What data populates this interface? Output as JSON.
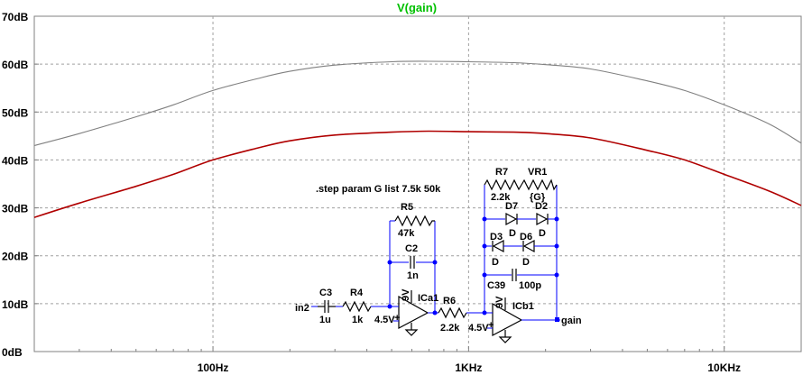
{
  "chart_data": {
    "type": "line",
    "title": "V(gain)",
    "x_scale": "log",
    "xlim": [
      20,
      20000
    ],
    "ylim": [
      0,
      70
    ],
    "x_ticks": [
      100,
      1000,
      10000
    ],
    "x_tick_labels": [
      "100Hz",
      "1KHz",
      "10KHz"
    ],
    "y_ticks": [
      0,
      10,
      20,
      30,
      40,
      50,
      60,
      70
    ],
    "y_tick_labels": [
      "0dB",
      "10dB",
      "20dB",
      "30dB",
      "40dB",
      "50dB",
      "60dB",
      "70dB"
    ],
    "grid": true,
    "series": [
      {
        "color": "#808080",
        "x": [
          20,
          30,
          50,
          70,
          100,
          150,
          200,
          300,
          500,
          700,
          1000,
          1500,
          2000,
          3000,
          5000,
          7000,
          10000,
          15000,
          20000
        ],
        "y": [
          43,
          45.5,
          49,
          51.5,
          54.5,
          57,
          58.5,
          59.8,
          60.5,
          60.6,
          60.5,
          60.3,
          59.9,
          59,
          56.5,
          54.5,
          51.5,
          47.5,
          43.5
        ]
      },
      {
        "color": "#b00000",
        "x": [
          20,
          30,
          50,
          70,
          100,
          150,
          200,
          300,
          500,
          700,
          1000,
          1500,
          2000,
          3000,
          5000,
          7000,
          10000,
          15000,
          20000
        ],
        "y": [
          28,
          31,
          34.5,
          37,
          40,
          42.5,
          44,
          45.2,
          45.8,
          46,
          45.9,
          45.8,
          45.5,
          44.6,
          42,
          40,
          37,
          33.5,
          30.5
        ]
      }
    ]
  },
  "schematic": {
    "directive": ".step param G list 7.5k 50k",
    "components": {
      "c3": {
        "name": "C3",
        "value": "1u"
      },
      "r4": {
        "name": "R4",
        "value": "1k"
      },
      "r5": {
        "name": "R5",
        "value": "47k"
      },
      "c2": {
        "name": "C2",
        "value": "1n"
      },
      "r6": {
        "name": "R6",
        "value": "2.2k"
      },
      "r7": {
        "name": "R7",
        "value": "2.2k"
      },
      "vr1": {
        "name": "VR1",
        "value": "{G}"
      },
      "d7": {
        "name": "D7",
        "value": "D"
      },
      "d2": {
        "name": "D2",
        "value": "D"
      },
      "d3": {
        "name": "D3",
        "value": "D"
      },
      "d6": {
        "name": "D6",
        "value": "D"
      },
      "c39": {
        "name": "C39",
        "value": "100p"
      },
      "ica1": {
        "name": "ICa1"
      },
      "icb1": {
        "name": "ICb1"
      }
    },
    "supply": "9V",
    "bias": "4.5V",
    "plus": "+",
    "input_label": "in2",
    "output_label": "gain"
  }
}
